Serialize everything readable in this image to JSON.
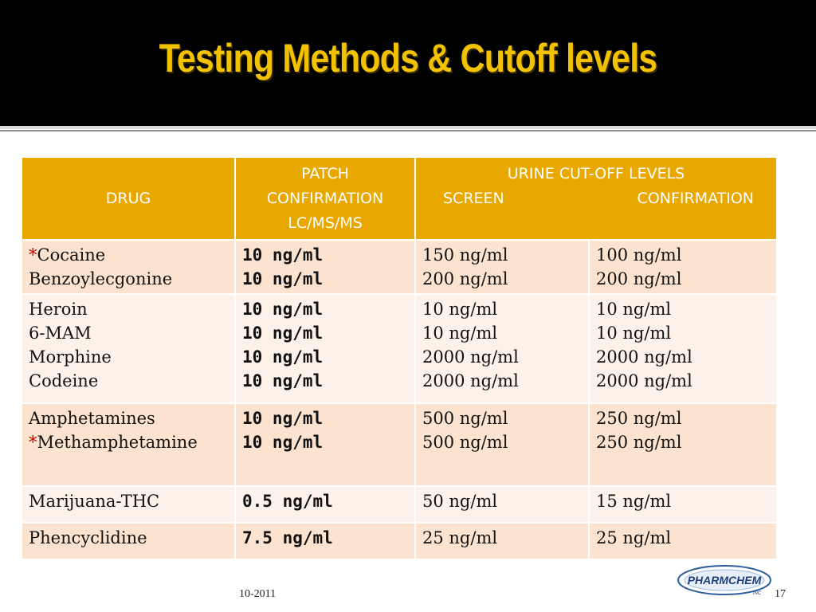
{
  "slide": {
    "title": "Testing Methods & Cutoff levels",
    "footer_date": "10-2011",
    "page_number": "17",
    "logo_text": "PHARMCHEM",
    "logo_subtext": "INC"
  },
  "colors": {
    "title": "#f2c200",
    "header_fill": "#e9a800",
    "row_band_a": "#fbe3cf",
    "row_band_b": "#fdf2ea",
    "asterisk": "#cc0000"
  },
  "table": {
    "headers": {
      "drug": "DRUG",
      "patch_lines": [
        "PATCH",
        "CONFIRMATION",
        "LC/MS/MS"
      ],
      "urine_title": "URINE CUT-OFF LEVELS",
      "urine_screen": "SCREEN",
      "urine_confirmation": "CONFIRMATION"
    },
    "rows": [
      {
        "drugs": [
          {
            "asterisk": "*",
            "name": "Cocaine"
          },
          {
            "asterisk": "",
            "name": "Benzoylecgonine"
          }
        ],
        "patch": [
          "10 ng/ml",
          "10 ng/ml"
        ],
        "screen": [
          "150 ng/ml",
          "200 ng/ml"
        ],
        "confirmation": [
          "100 ng/ml",
          "200 ng/ml"
        ]
      },
      {
        "drugs": [
          {
            "asterisk": "",
            "name": "Heroin"
          },
          {
            "asterisk": "",
            "name": "6-MAM"
          },
          {
            "asterisk": "",
            "name": "Morphine"
          },
          {
            "asterisk": "",
            "name": "Codeine"
          }
        ],
        "patch": [
          "10 ng/ml",
          "10 ng/ml",
          "10 ng/ml",
          "10 ng/ml"
        ],
        "screen": [
          "10 ng/ml",
          "10 ng/ml",
          "2000 ng/ml",
          "2000 ng/ml"
        ],
        "confirmation": [
          "10 ng/ml",
          "10 ng/ml",
          "2000 ng/ml",
          "2000 ng/ml"
        ]
      },
      {
        "drugs": [
          {
            "asterisk": "",
            "name": "Amphetamines"
          },
          {
            "asterisk": "*",
            "name": "Methamphetamine"
          }
        ],
        "patch": [
          "10 ng/ml",
          "10 ng/ml"
        ],
        "screen": [
          "500 ng/ml",
          "500 ng/ml"
        ],
        "confirmation": [
          "250 ng/ml",
          "250 ng/ml"
        ]
      },
      {
        "drugs": [
          {
            "asterisk": "",
            "name": "Marijuana-THC"
          }
        ],
        "patch": [
          "0.5 ng/ml"
        ],
        "screen": [
          "50 ng/ml"
        ],
        "confirmation": [
          "15 ng/ml"
        ]
      },
      {
        "drugs": [
          {
            "asterisk": "",
            "name": "Phencyclidine"
          }
        ],
        "patch": [
          "7.5 ng/ml"
        ],
        "screen": [
          "25 ng/ml"
        ],
        "confirmation": [
          "25 ng/ml"
        ]
      }
    ]
  }
}
